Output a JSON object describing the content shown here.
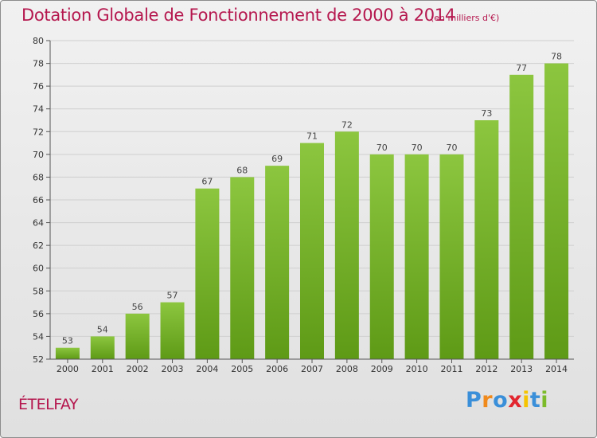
{
  "chart_data": {
    "type": "bar",
    "title": "Dotation Globale de Fonctionnement de 2000 à 2014",
    "subtitle": "(en milliers d'€)",
    "categories": [
      "2000",
      "2001",
      "2002",
      "2003",
      "2004",
      "2005",
      "2006",
      "2007",
      "2008",
      "2009",
      "2010",
      "2011",
      "2012",
      "2013",
      "2014"
    ],
    "values": [
      53,
      54,
      56,
      57,
      67,
      68,
      69,
      71,
      72,
      70,
      70,
      70,
      73,
      77,
      78
    ],
    "ylim": [
      52,
      80
    ],
    "yticks": [
      52,
      54,
      56,
      58,
      60,
      62,
      64,
      66,
      68,
      70,
      72,
      74,
      76,
      78,
      80
    ],
    "xlabel": "",
    "ylabel": "",
    "grid": true,
    "bar_color": "#8cc63f",
    "bar_color_dark": "#5e9a16"
  },
  "commune": "ÉTELFAY",
  "logo": {
    "text": "Proxiti",
    "letters": [
      {
        "ch": "P",
        "color": "#3a8fd9"
      },
      {
        "ch": "r",
        "color": "#f08a1c"
      },
      {
        "ch": "o",
        "color": "#3a8fd9"
      },
      {
        "ch": "x",
        "color": "#e2262f"
      },
      {
        "ch": "i",
        "color": "#f5c400"
      },
      {
        "ch": "t",
        "color": "#3a8fd9"
      },
      {
        "ch": "i",
        "color": "#7cbb2a"
      }
    ]
  },
  "colors": {
    "title": "#b5174e",
    "grid": "#cfcfcf",
    "axis": "#555555"
  }
}
